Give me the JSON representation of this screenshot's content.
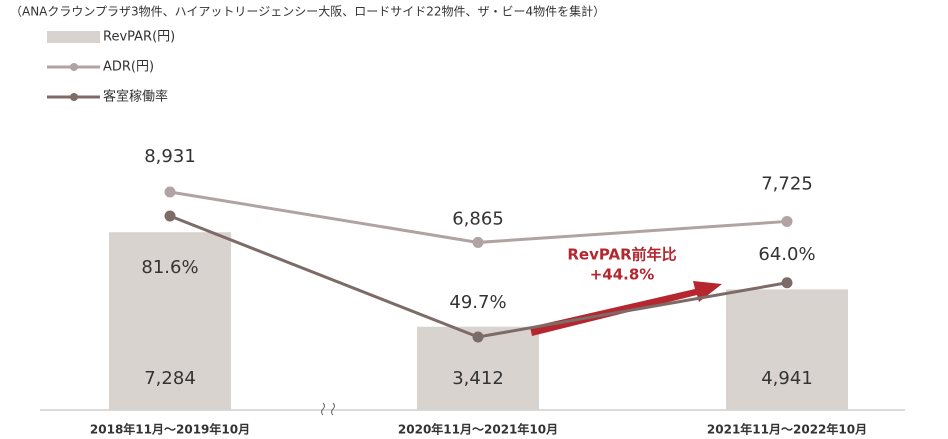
{
  "chart_data": {
    "type": "bar_line",
    "note": "（ANAクラウンプラザ3物件、ハイアットリージェンシー大阪、ロードサイド22物件、ザ・ビー4物件を集計）",
    "categories": [
      "2018年11月～2019年10月",
      "2020年11月～2021年10月",
      "2021年11月～2022年10月"
    ],
    "series": [
      {
        "name": "RevPAR(円)",
        "kind": "bar",
        "color": "#d9d3d0",
        "values": [
          7284,
          3412,
          4941
        ],
        "value_labels": [
          "7,284",
          "3,412",
          "4,941"
        ]
      },
      {
        "name": "ADR(円)",
        "kind": "line",
        "color": "#b0a3a2",
        "values": [
          8931,
          6865,
          7725
        ],
        "value_labels": [
          "8,931",
          "6,865",
          "7,725"
        ]
      },
      {
        "name": "客室稼働率",
        "kind": "line",
        "color": "#7d6b68",
        "values": [
          81.6,
          49.7,
          64.0
        ],
        "value_labels": [
          "81.6%",
          "49.7%",
          "64.0%"
        ]
      }
    ],
    "annotation": {
      "lines": [
        "RevPAR前年比",
        "+44.8%"
      ],
      "color": "#b5262e"
    }
  }
}
